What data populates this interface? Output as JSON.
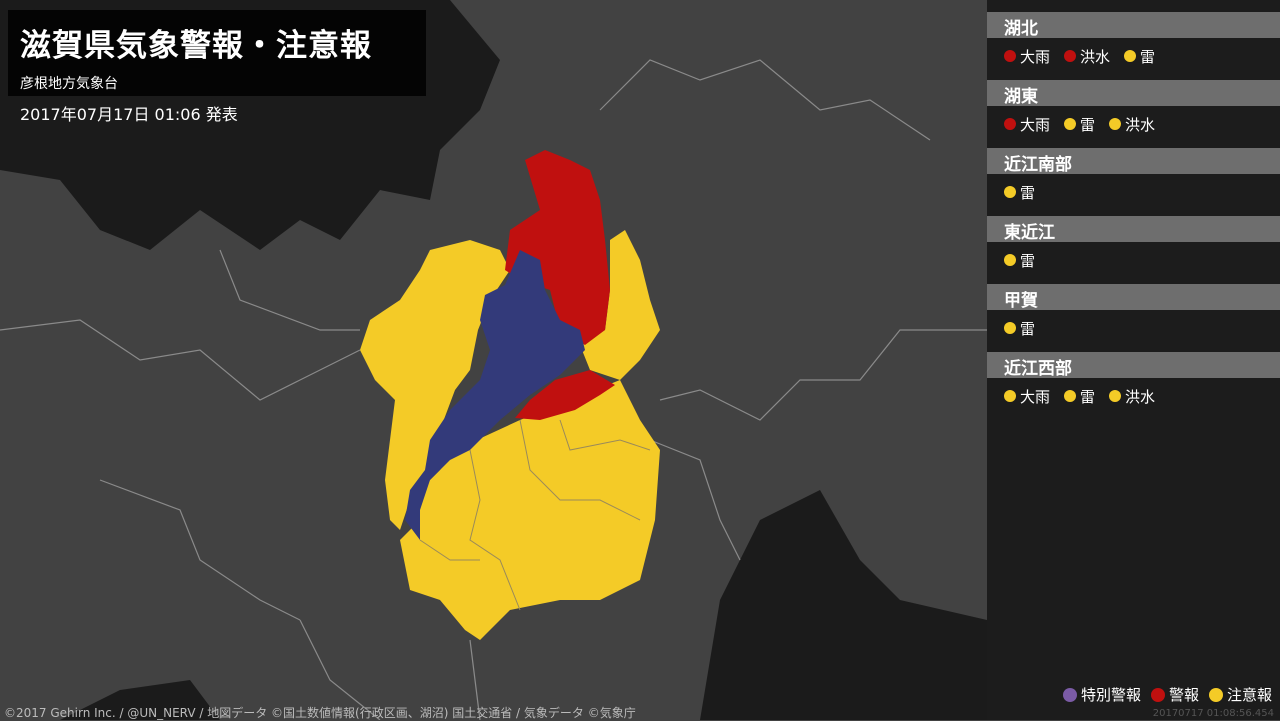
{
  "title": "滋賀県気象警報・注意報",
  "office": "彦根地方気象台",
  "issued": "2017年07月17日 01:06 発表",
  "colors": {
    "special": "#7b5ba6",
    "warning": "#c0100f",
    "advisory": "#f4cb27",
    "lake": "#333a7a",
    "land": "#424242",
    "sea": "#1b1b1b"
  },
  "areas": [
    {
      "name": "湖北",
      "status": "warning",
      "items": [
        {
          "label": "大雨",
          "level": "warning"
        },
        {
          "label": "洪水",
          "level": "warning"
        },
        {
          "label": "雷",
          "level": "advisory"
        }
      ]
    },
    {
      "name": "湖東",
      "status": "warning",
      "items": [
        {
          "label": "大雨",
          "level": "warning"
        },
        {
          "label": "雷",
          "level": "advisory"
        },
        {
          "label": "洪水",
          "level": "advisory"
        }
      ]
    },
    {
      "name": "近江南部",
      "status": "advisory",
      "items": [
        {
          "label": "雷",
          "level": "advisory"
        }
      ]
    },
    {
      "name": "東近江",
      "status": "advisory",
      "items": [
        {
          "label": "雷",
          "level": "advisory"
        }
      ]
    },
    {
      "name": "甲賀",
      "status": "advisory",
      "items": [
        {
          "label": "雷",
          "level": "advisory"
        }
      ]
    },
    {
      "name": "近江西部",
      "status": "advisory",
      "items": [
        {
          "label": "大雨",
          "level": "advisory"
        },
        {
          "label": "雷",
          "level": "advisory"
        },
        {
          "label": "洪水",
          "level": "advisory"
        }
      ]
    }
  ],
  "legend": [
    {
      "label": "特別警報",
      "level": "special"
    },
    {
      "label": "警報",
      "level": "warning"
    },
    {
      "label": "注意報",
      "level": "advisory"
    }
  ],
  "credit": "©2017 Gehirn Inc. / @UN_NERV / 地図データ ©国土数値情報(行政区画、湖沼) 国土交通省 / 気象データ ©気象庁",
  "timestamp": "20170717 01:08:56.454"
}
